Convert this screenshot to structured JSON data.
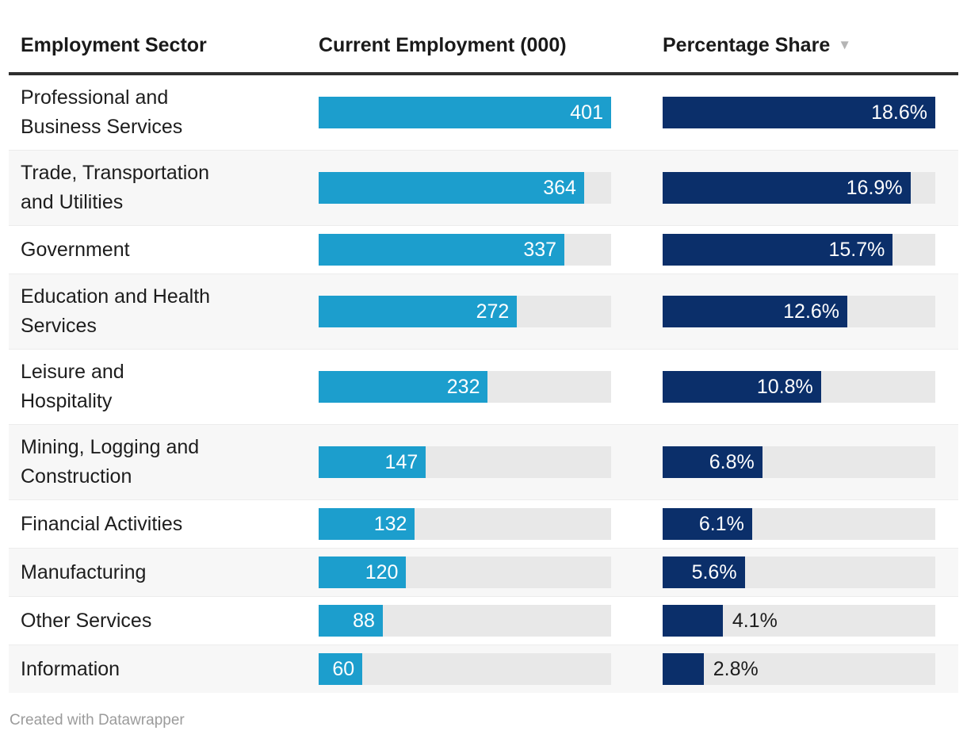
{
  "colors": {
    "employment_bar": "#1C9ECD",
    "share_bar": "#0B2F6A",
    "bar_track": "#E8E8E8",
    "row_stripe": "#F7F7F7",
    "header_rule": "#2F2F2F",
    "sort_arrow": "#B5B5B5",
    "footer_text": "#9B9B9B"
  },
  "columns": [
    {
      "label": "Employment Sector"
    },
    {
      "label": "Current Employment (000)"
    },
    {
      "label": "Percentage Share",
      "sort_indicator": "▼",
      "sort_direction": "descending"
    }
  ],
  "max": {
    "employment": 401,
    "share": 18.6
  },
  "rows": [
    {
      "sector": "Professional and\nBusiness Services",
      "employment": "401",
      "share": 18.6,
      "share_label": "18.6%",
      "share_label_inside": true
    },
    {
      "sector": "Trade, Transportation\nand Utilities",
      "employment": "364",
      "share": 16.9,
      "share_label": "16.9%",
      "share_label_inside": true
    },
    {
      "sector": "Government",
      "employment": "337",
      "share": 15.7,
      "share_label": "15.7%",
      "share_label_inside": true
    },
    {
      "sector": "Education and Health\nServices",
      "employment": "272",
      "share": 12.6,
      "share_label": "12.6%",
      "share_label_inside": true
    },
    {
      "sector": "Leisure and\nHospitality",
      "employment": "232",
      "share": 10.8,
      "share_label": "10.8%",
      "share_label_inside": true
    },
    {
      "sector": "Mining, Logging and\nConstruction",
      "employment": "147",
      "share": 6.8,
      "share_label": "6.8%",
      "share_label_inside": true
    },
    {
      "sector": "Financial Activities",
      "employment": "132",
      "share": 6.1,
      "share_label": "6.1%",
      "share_label_inside": true
    },
    {
      "sector": "Manufacturing",
      "employment": "120",
      "share": 5.6,
      "share_label": "5.6%",
      "share_label_inside": true
    },
    {
      "sector": "Other Services",
      "employment": "88",
      "share": 4.1,
      "share_label": "4.1%",
      "share_label_inside": false
    },
    {
      "sector": "Information",
      "employment": "60",
      "share": 2.8,
      "share_label": "2.8%",
      "share_label_inside": false
    }
  ],
  "footer": {
    "attribution": "Created with Datawrapper"
  },
  "chart_data": {
    "type": "table",
    "title": "",
    "columns": [
      "Employment Sector",
      "Current Employment (000)",
      "Percentage Share"
    ],
    "categories": [
      "Professional and Business Services",
      "Trade, Transportation and Utilities",
      "Government",
      "Education and Health Services",
      "Leisure and Hospitality",
      "Mining, Logging and Construction",
      "Financial Activities",
      "Manufacturing",
      "Other Services",
      "Information"
    ],
    "series": [
      {
        "name": "Current Employment (000)",
        "values": [
          401,
          364,
          337,
          272,
          232,
          147,
          132,
          120,
          88,
          60
        ]
      },
      {
        "name": "Percentage Share (%)",
        "values": [
          18.6,
          16.9,
          15.7,
          12.6,
          10.8,
          6.8,
          6.1,
          5.6,
          4.1,
          2.8
        ]
      }
    ],
    "bar_scale": {
      "employment_axis_max": 401,
      "share_axis_max_percent": 18.6
    },
    "sorted_by": "Percentage Share descending",
    "legend": "none",
    "grid": "off"
  }
}
